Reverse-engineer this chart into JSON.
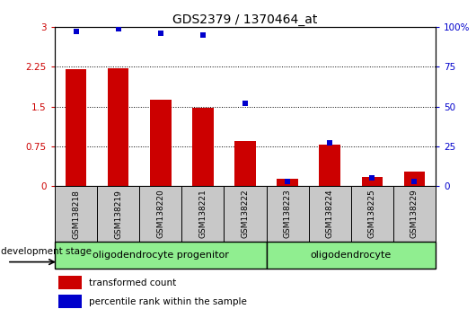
{
  "title": "GDS2379 / 1370464_at",
  "samples": [
    "GSM138218",
    "GSM138219",
    "GSM138220",
    "GSM138221",
    "GSM138222",
    "GSM138223",
    "GSM138224",
    "GSM138225",
    "GSM138229"
  ],
  "red_bars": [
    2.2,
    2.22,
    1.63,
    1.48,
    0.85,
    0.13,
    0.78,
    0.17,
    0.28
  ],
  "blue_dots": [
    97,
    99,
    96,
    95,
    52,
    3,
    27,
    5,
    3
  ],
  "left_ylim": [
    0,
    3
  ],
  "right_ylim": [
    0,
    100
  ],
  "left_yticks": [
    0,
    0.75,
    1.5,
    2.25,
    3
  ],
  "right_yticks": [
    0,
    25,
    50,
    75,
    100
  ],
  "left_ytick_labels": [
    "0",
    "0.75",
    "1.5",
    "2.25",
    "3"
  ],
  "right_ytick_labels": [
    "0",
    "25",
    "50",
    "75",
    "100%"
  ],
  "bar_color": "#cc0000",
  "dot_color": "#0000cc",
  "bar_width": 0.5,
  "xlabel_area_color": "#c8c8c8",
  "group1_color": "#90ee90",
  "group2_color": "#90ee90",
  "legend_red_label": "transformed count",
  "legend_blue_label": "percentile rank within the sample",
  "dev_stage_label": "development stage",
  "group1_label": "oligodendrocyte progenitor",
  "group2_label": "oligodendrocyte",
  "title_fontsize": 10,
  "tick_fontsize": 7.5,
  "sample_fontsize": 6.5,
  "group_fontsize": 8,
  "legend_fontsize": 7.5,
  "dev_fontsize": 7.5
}
